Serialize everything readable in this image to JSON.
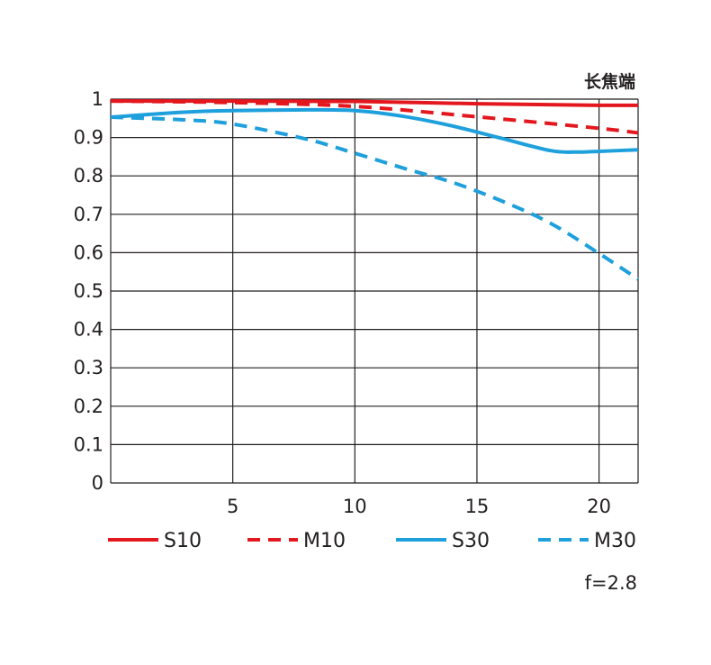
{
  "chart_data": {
    "type": "line",
    "title": "",
    "corner_label": "长焦端",
    "aperture_label": "f=2.8",
    "xlabel": "",
    "ylabel": "",
    "xlim": [
      0,
      21.6
    ],
    "ylim": [
      0,
      1
    ],
    "grid": true,
    "x_ticks": [
      5,
      10,
      15,
      20
    ],
    "y_ticks": [
      0,
      0.1,
      0.2,
      0.3,
      0.4,
      0.5,
      0.6,
      0.7,
      0.8,
      0.9,
      1
    ],
    "y_tick_labels": [
      "0",
      "0.1",
      "0.2",
      "0.3",
      "0.4",
      "0.5",
      "0.6",
      "0.7",
      "0.8",
      "0.9",
      "1"
    ],
    "legend_position": "bottom",
    "series": [
      {
        "name": "S10",
        "color": "#e3171d",
        "dash": false,
        "x": [
          0,
          5,
          10,
          15,
          20,
          21.6
        ],
        "y": [
          0.995,
          0.995,
          0.994,
          0.988,
          0.984,
          0.984
        ]
      },
      {
        "name": "M10",
        "color": "#e3171d",
        "dash": true,
        "x": [
          0,
          5,
          10,
          15,
          20,
          21.6
        ],
        "y": [
          0.995,
          0.991,
          0.981,
          0.954,
          0.924,
          0.912
        ]
      },
      {
        "name": "S30",
        "color": "#1ea0dc",
        "dash": false,
        "x": [
          0,
          3,
          5,
          8,
          10,
          12,
          14,
          16,
          18,
          19,
          20,
          21.6
        ],
        "y": [
          0.953,
          0.966,
          0.97,
          0.972,
          0.97,
          0.955,
          0.93,
          0.898,
          0.866,
          0.862,
          0.864,
          0.868
        ]
      },
      {
        "name": "M30",
        "color": "#1ea0dc",
        "dash": true,
        "x": [
          0,
          3,
          5,
          8,
          10,
          12,
          14,
          16,
          18,
          20,
          21.6
        ],
        "y": [
          0.953,
          0.946,
          0.935,
          0.896,
          0.859,
          0.82,
          0.783,
          0.735,
          0.677,
          0.598,
          0.531
        ]
      }
    ]
  }
}
